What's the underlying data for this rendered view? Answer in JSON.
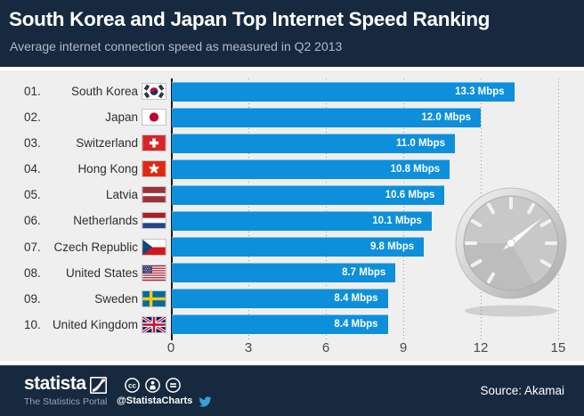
{
  "header": {
    "title": "South Korea and Japan Top Internet Speed Ranking",
    "subtitle": "Average internet connection speed as measured in Q2 2013"
  },
  "chart_data": {
    "type": "bar",
    "orientation": "horizontal",
    "title": "South Korea and Japan Top Internet Speed Ranking",
    "subtitle": "Average internet connection speed as measured in Q2 2013",
    "unit": "Mbps",
    "ranks": [
      "01.",
      "02.",
      "03.",
      "04.",
      "05.",
      "06.",
      "07.",
      "08.",
      "09.",
      "10."
    ],
    "categories": [
      "South Korea",
      "Japan",
      "Switzerland",
      "Hong Kong",
      "Latvia",
      "Netherlands",
      "Czech Republic",
      "United States",
      "Sweden",
      "United Kingdom"
    ],
    "values": [
      13.3,
      12.0,
      11.0,
      10.8,
      10.6,
      10.1,
      9.8,
      8.7,
      8.4,
      8.4
    ],
    "value_labels": [
      "13.3 Mbps",
      "12.0 Mbps",
      "11.0 Mbps",
      "10.8 Mbps",
      "10.6 Mbps",
      "10.1 Mbps",
      "9.8 Mbps",
      "8.7 Mbps",
      "8.4 Mbps",
      "8.4 Mbps"
    ],
    "flag_icons": [
      "flag-south-korea",
      "flag-japan",
      "flag-switzerland",
      "flag-hong-kong",
      "flag-latvia",
      "flag-netherlands",
      "flag-czech-republic",
      "flag-united-states",
      "flag-sweden",
      "flag-united-kingdom"
    ],
    "x_ticks": [
      0,
      3,
      6,
      9,
      12,
      15
    ],
    "xlim": [
      0,
      15
    ],
    "grid": "vertical-dotted",
    "legend": "none",
    "decoration": "speedometer-graphic"
  },
  "footer": {
    "logo": "statista",
    "tagline": "The Statistics Portal",
    "handle": "@StatistaCharts",
    "source": "Source: Akamai",
    "license_icons": [
      "cc-icon",
      "cc-by-icon",
      "cc-nd-icon"
    ],
    "twitter_icon": "twitter-bird-icon"
  },
  "colors": {
    "header_bg": "#17293f",
    "plot_bg": "#efefef",
    "bar": "#0d8fdb",
    "bar_label": "#ffffff",
    "twitter_blue": "#38a1d8"
  }
}
